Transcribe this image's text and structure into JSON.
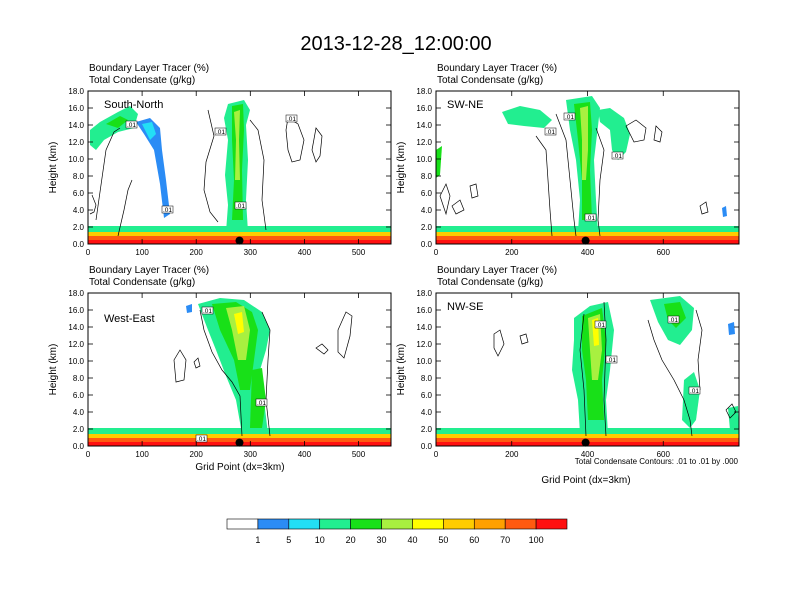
{
  "chart_data": {
    "type": "cross-section-panels",
    "title": "2013-12-28_12:00:00",
    "xlabel": "Grid Point (dx=3km)",
    "ylabel": "Height (km)",
    "contour_note": "Total Condensate Contours: .01 to .01 by .000",
    "panels": [
      {
        "name": "South-North",
        "subtitle_lines": [
          "Boundary Layer Tracer   (%)",
          "Total Condensate   (g/kg)"
        ],
        "xlim": [
          0,
          560
        ],
        "xticks": [
          0,
          100,
          200,
          300,
          400,
          500
        ],
        "ylim": [
          0,
          18
        ],
        "yticks": [
          "0.0",
          "2.0",
          "4.0",
          "6.0",
          "8.0",
          "10.0",
          "12.0",
          "14.0",
          "16.0",
          "18.0"
        ],
        "marker_x": 280,
        "contour_labels": [
          ".01",
          ".01",
          ".01",
          ".01",
          ".01"
        ]
      },
      {
        "name": "SW-NE",
        "subtitle_lines": [
          "Boundary Layer Tracer   (%)",
          "Total Condensate   (g/kg)"
        ],
        "xlim": [
          0,
          800
        ],
        "xticks": [
          0,
          200,
          400,
          600
        ],
        "ylim": [
          0,
          18
        ],
        "yticks": [
          "0.0",
          "2.0",
          "4.0",
          "6.0",
          "8.0",
          "10.0",
          "12.0",
          "14.0",
          "16.0",
          "18.0"
        ],
        "marker_x": 395,
        "contour_labels": [
          ".01",
          ".01",
          ".01",
          ".01"
        ]
      },
      {
        "name": "West-East",
        "subtitle_lines": [
          "Boundary Layer Tracer   (%)",
          "Total Condensate   (g/kg)"
        ],
        "xlim": [
          0,
          560
        ],
        "xticks": [
          0,
          100,
          200,
          300,
          400,
          500
        ],
        "ylim": [
          0,
          18
        ],
        "yticks": [
          "0.0",
          "2.0",
          "4.0",
          "6.0",
          "8.0",
          "10.0",
          "12.0",
          "14.0",
          "16.0",
          "18.0"
        ],
        "marker_x": 280,
        "contour_labels": [
          ".01",
          ".01",
          ".01"
        ]
      },
      {
        "name": "NW-SE",
        "subtitle_lines": [
          "Boundary Layer Tracer   (%)",
          "Total Condensate   (g/kg)"
        ],
        "xlim": [
          0,
          800
        ],
        "xticks": [
          0,
          200,
          400,
          600
        ],
        "ylim": [
          0,
          18
        ],
        "yticks": [
          "0.0",
          "2.0",
          "4.0",
          "6.0",
          "8.0",
          "10.0",
          "12.0",
          "14.0",
          "16.0",
          "18.0"
        ],
        "marker_x": 395,
        "contour_labels": [
          ".01",
          ".01",
          ".01",
          ".01"
        ]
      }
    ],
    "colorbar": {
      "colors": [
        "#ffffff",
        "#2b8cf5",
        "#23dff5",
        "#22ee90",
        "#18e018",
        "#a8f040",
        "#ffff00",
        "#ffcc00",
        "#ffa000",
        "#ff5a10",
        "#ff1010"
      ],
      "labels": [
        "1",
        "5",
        "10",
        "20",
        "30",
        "40",
        "50",
        "60",
        "70",
        "100"
      ]
    }
  }
}
